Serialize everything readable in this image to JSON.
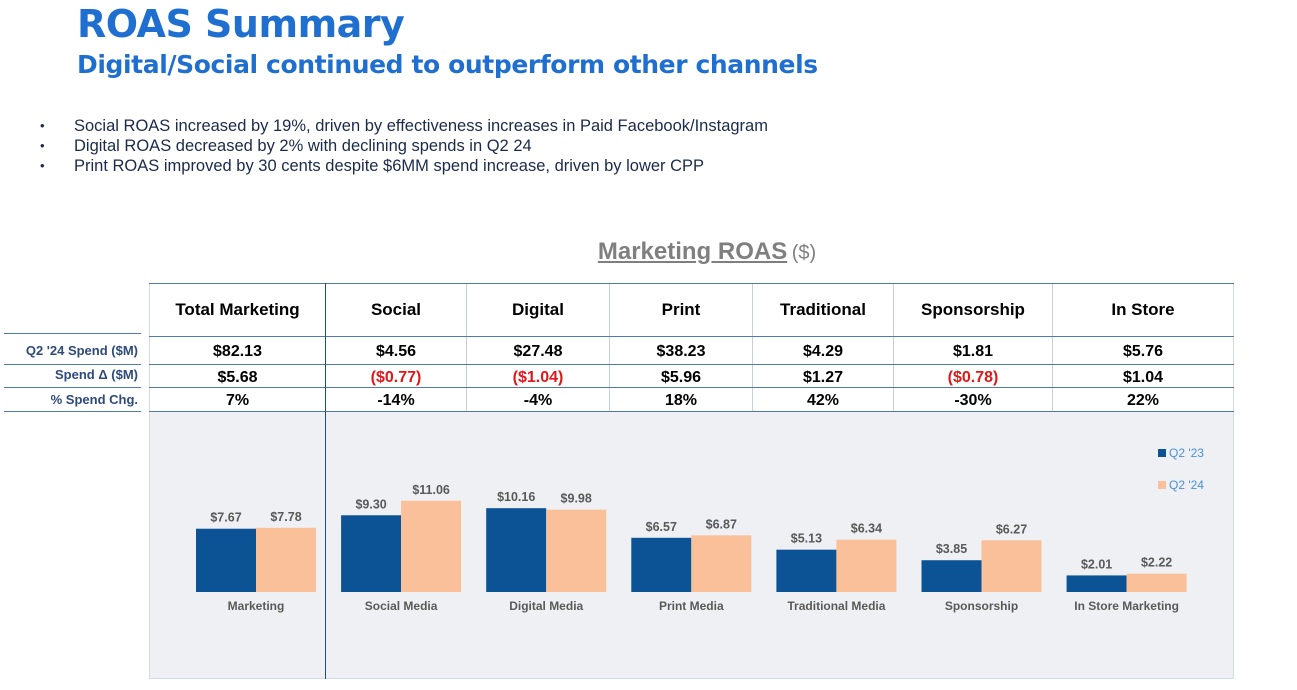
{
  "header": {
    "title": "ROAS Summary",
    "subtitle": "Digital/Social continued to outperform other channels"
  },
  "bullets": [
    "Social ROAS increased by 19%, driven by effectiveness increases in Paid Facebook/Instagram",
    "Digital ROAS decreased by 2% with declining spends in Q2 24",
    "Print ROAS improved by 30 cents despite $6MM spend increase, driven by lower CPP"
  ],
  "table": {
    "columns": [
      "Total Marketing",
      "Social",
      "Digital",
      "Print",
      "Traditional",
      "Sponsorship",
      "In Store"
    ],
    "rows": [
      {
        "label": "Q2 '24 Spend ($M)",
        "values": [
          "$82.13",
          "$4.56",
          "$27.48",
          "$38.23",
          "$4.29",
          "$1.81",
          "$5.76"
        ]
      },
      {
        "label": "Spend Δ ($M)",
        "values": [
          "$5.68",
          "($0.77)",
          "($1.04)",
          "$5.96",
          "$1.27",
          "($0.78)",
          "$1.04"
        ]
      },
      {
        "label": "% Spend Chg.",
        "values": [
          "7%",
          "-14%",
          "-4%",
          "18%",
          "42%",
          "-30%",
          "22%"
        ]
      }
    ]
  },
  "chart_data": {
    "type": "bar",
    "title": "Marketing ROAS",
    "title_unit": "($)",
    "categories": [
      "Marketing",
      "Social Media",
      "Digital Media",
      "Print Media",
      "Traditional Media",
      "Sponsorship",
      "In Store Marketing"
    ],
    "series": [
      {
        "name": "Q2 '23",
        "color": "#0b5394",
        "values": [
          7.67,
          9.3,
          10.16,
          6.57,
          5.13,
          3.85,
          2.01
        ],
        "labels": [
          "$7.67",
          "$9.30",
          "$10.16",
          "$6.57",
          "$5.13",
          "$3.85",
          "$2.01"
        ]
      },
      {
        "name": "Q2 '24",
        "color": "#f9c09a",
        "values": [
          7.78,
          11.06,
          9.98,
          6.87,
          6.34,
          6.27,
          2.22
        ],
        "labels": [
          "$7.78",
          "$11.06",
          "$9.98",
          "$6.87",
          "$6.34",
          "$6.27",
          "$2.22"
        ]
      }
    ],
    "ylim": [
      0,
      12
    ],
    "legend": "top-right"
  },
  "colors": {
    "title": "#1f6fd1",
    "negative": "#e01818",
    "legend_text": "#4a90d9",
    "label_text": "#595959"
  }
}
